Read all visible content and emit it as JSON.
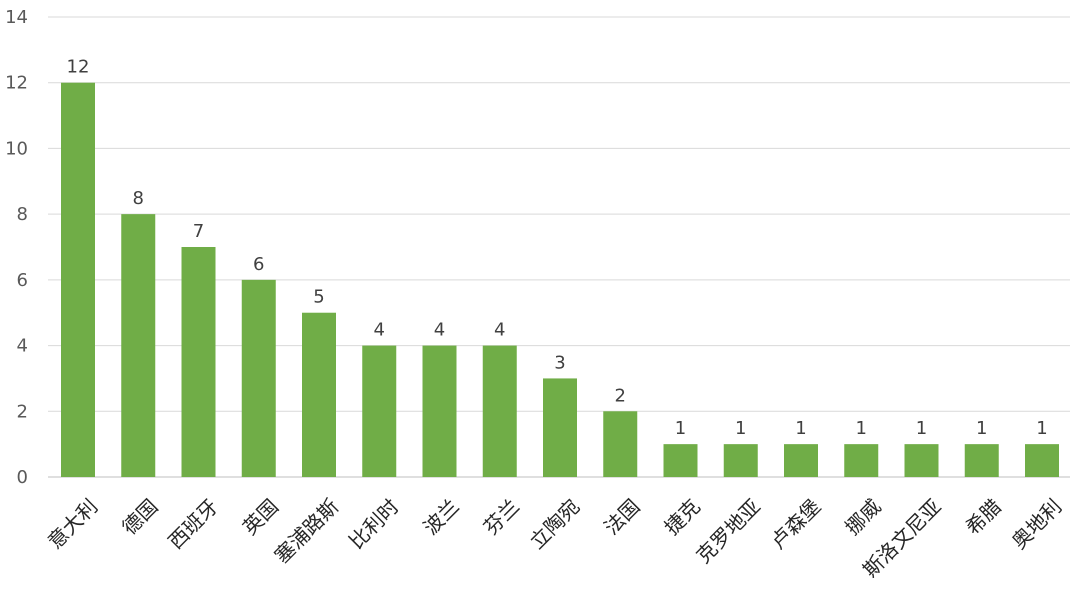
{
  "chart_data": {
    "type": "bar",
    "categories": [
      "意大利",
      "德国",
      "西班牙",
      "英国",
      "塞浦路斯",
      "比利时",
      "波兰",
      "芬兰",
      "立陶宛",
      "法国",
      "捷克",
      "克罗地亚",
      "卢森堡",
      "挪威",
      "斯洛文尼亚",
      "希腊",
      "奥地利"
    ],
    "values": [
      12,
      8,
      7,
      6,
      5,
      4,
      4,
      4,
      3,
      2,
      1,
      1,
      1,
      1,
      1,
      1,
      1
    ],
    "ylim": [
      0,
      14
    ],
    "yticks": [
      0,
      2,
      4,
      6,
      8,
      10,
      12,
      14
    ],
    "grid": true,
    "legend": "none",
    "bar_color": "#70ad47",
    "grid_color": "#d9d9d9"
  }
}
